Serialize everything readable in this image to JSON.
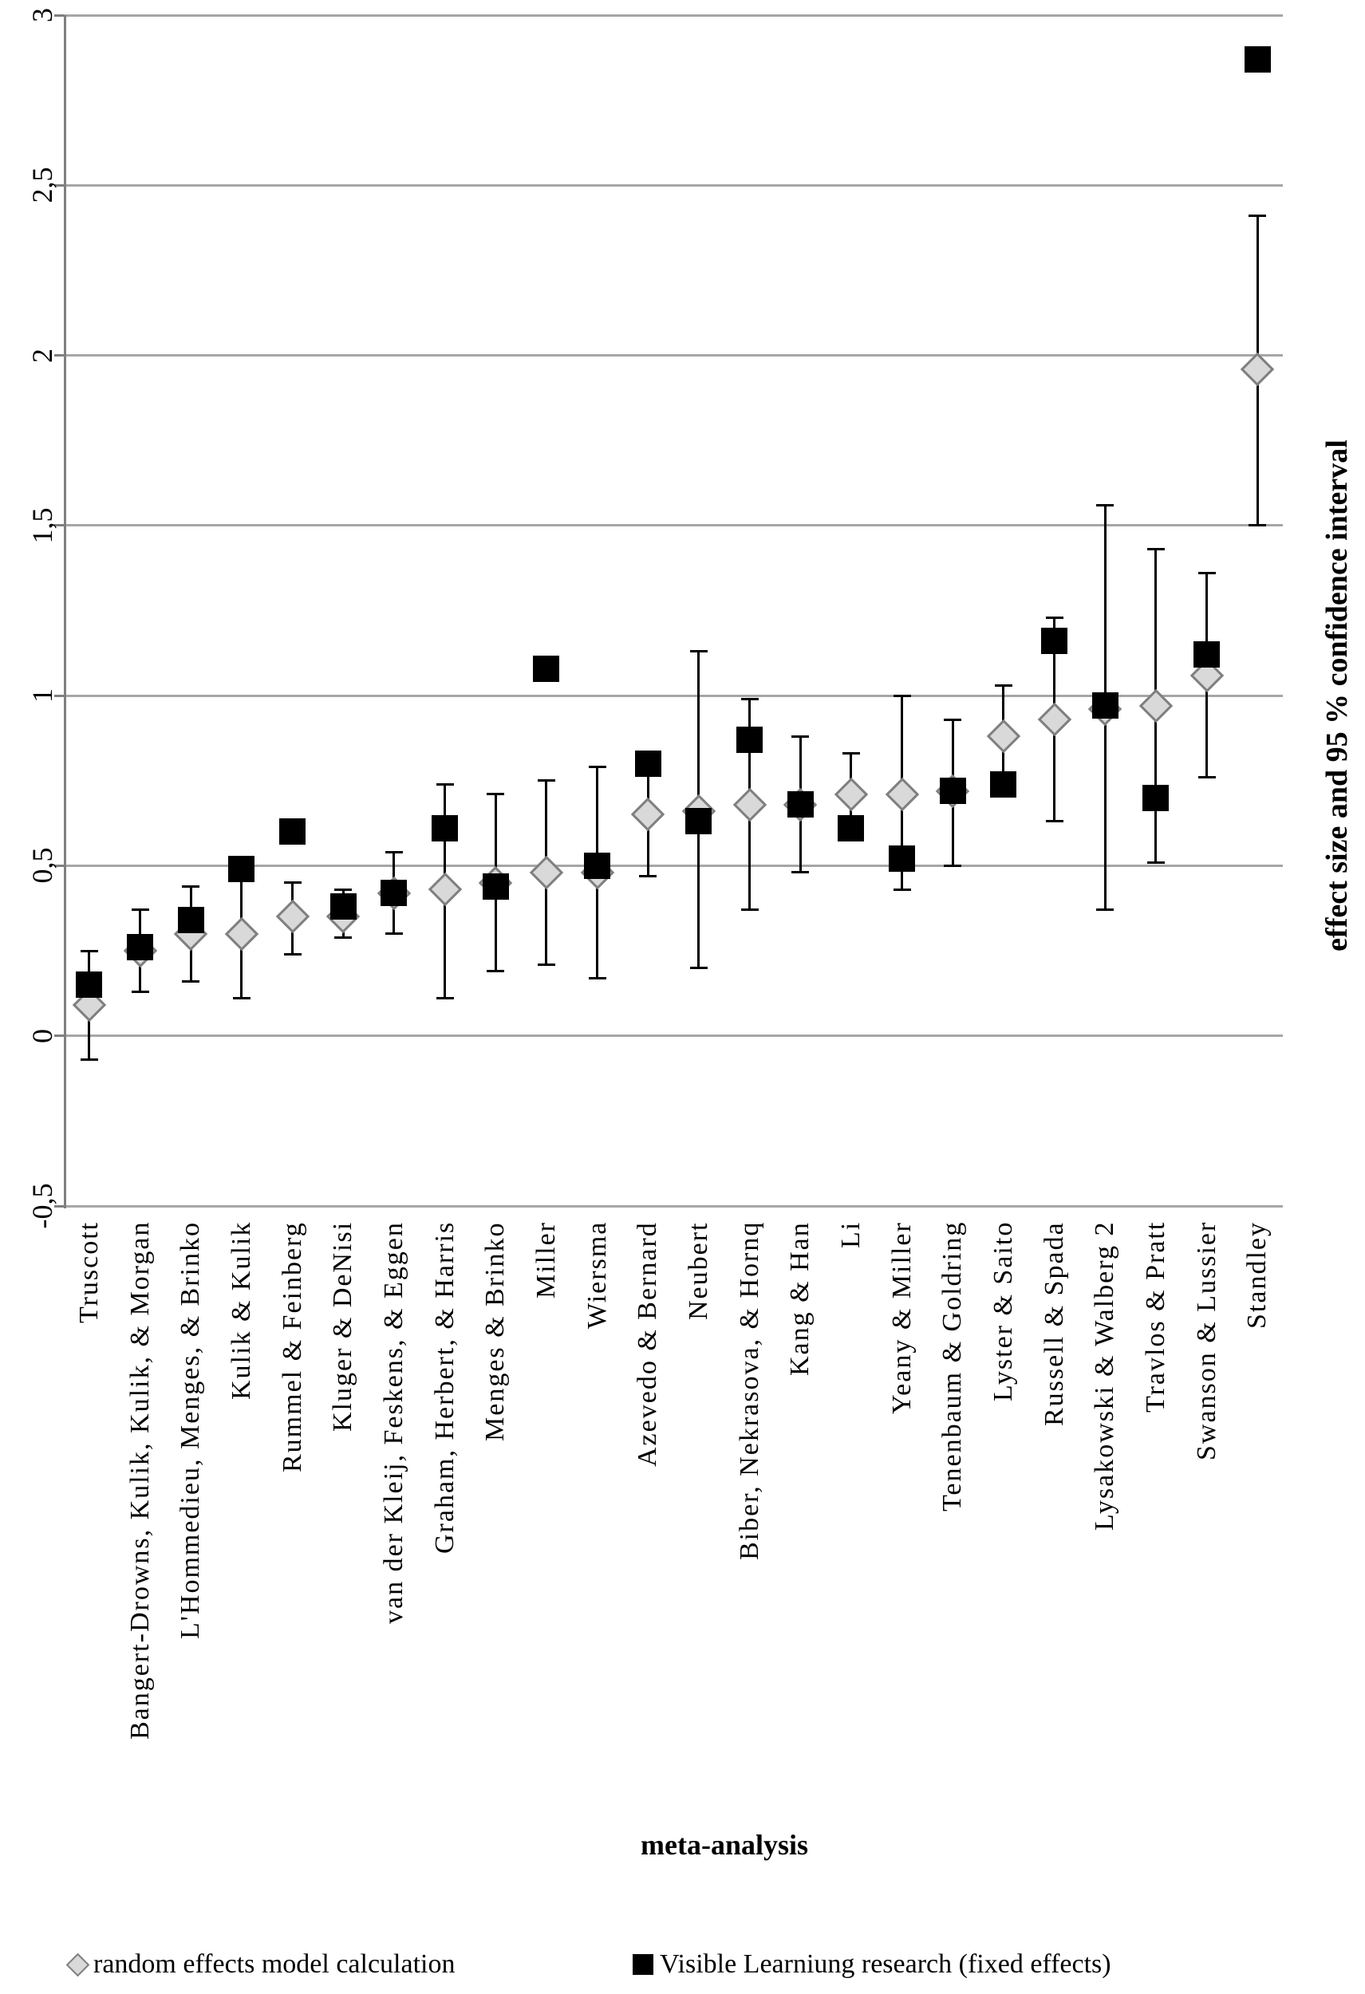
{
  "chart_data": {
    "type": "scatter",
    "title": "",
    "xlabel": "meta-analysis",
    "ylabel": "effect size and 95 % confidence interval",
    "ylim": [
      -0.5,
      3
    ],
    "ytick_step": 0.5,
    "ytick_labels": [
      "3",
      "2,5",
      "2",
      "1,5",
      "1",
      "0,5",
      "0",
      "-0,5"
    ],
    "grid": "horizontal-only",
    "legend_position": "bottom",
    "decimal_style": "comma",
    "categories": [
      "Truscott",
      "Bangert-Drowns, Kulik, Kulik, & Morgan",
      "L'Hommedieu, Menges, & Brinko",
      "Kulik & Kulik",
      "Rummel & Feinberg",
      "Kluger & DeNisi",
      "van der Kleij, Feskens, & Eggen",
      "Graham, Herbert, & Harris",
      "Menges & Brinko",
      "Miller",
      "Wiersma",
      "Azevedo & Bernard",
      "Neubert",
      "Biber, Nekrasova, & Hornq",
      "Kang & Han",
      "Li",
      "Yeany & Miller",
      "Tenenbaum & Goldring",
      "Lyster & Saito",
      "Russell & Spada",
      "Lysakowski & Walberg 2",
      "Travlos & Pratt",
      "Swanson & Lussier",
      "Standley"
    ],
    "series": [
      {
        "name": "random effects model calculation",
        "marker": "diamond",
        "marker_fill": "#d9d9d9",
        "marker_stroke": "#7f7f7f",
        "values": [
          0.09,
          0.25,
          0.3,
          0.3,
          0.35,
          0.35,
          0.42,
          0.43,
          0.45,
          0.48,
          0.48,
          0.65,
          0.66,
          0.68,
          0.68,
          0.71,
          0.71,
          0.72,
          0.88,
          0.93,
          0.96,
          0.97,
          1.06,
          1.96
        ],
        "ci_low": [
          -0.07,
          0.13,
          0.16,
          0.11,
          0.24,
          0.29,
          0.3,
          0.11,
          0.19,
          0.21,
          0.17,
          0.47,
          0.2,
          0.37,
          0.48,
          0.59,
          0.43,
          0.5,
          0.74,
          0.63,
          0.37,
          0.51,
          0.76,
          1.5
        ],
        "ci_high": [
          0.25,
          0.37,
          0.44,
          0.49,
          0.45,
          0.43,
          0.54,
          0.74,
          0.71,
          0.75,
          0.79,
          0.83,
          1.13,
          0.99,
          0.88,
          0.83,
          1.0,
          0.93,
          1.03,
          1.23,
          1.56,
          1.43,
          1.36,
          2.41
        ]
      },
      {
        "name": "Visible Learniung research (fixed effects)",
        "marker": "square",
        "marker_fill": "#000000",
        "values": [
          0.15,
          0.26,
          0.34,
          0.49,
          0.6,
          0.38,
          0.42,
          0.61,
          0.44,
          1.08,
          0.5,
          0.8,
          0.63,
          0.87,
          0.68,
          0.61,
          0.52,
          0.72,
          0.74,
          1.16,
          0.97,
          0.7,
          1.12,
          2.87
        ]
      }
    ],
    "colors": {
      "gridline": "#a6a6a6",
      "axis": "#7f7f7f",
      "error_bar": "#000000"
    }
  }
}
